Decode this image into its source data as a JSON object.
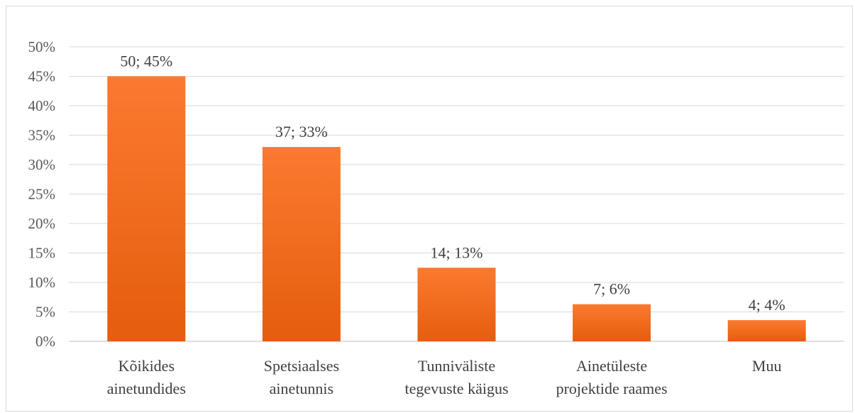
{
  "chart_data": {
    "type": "bar",
    "categories": [
      [
        "Kõikides",
        "ainetundides"
      ],
      [
        "Spetsiaalses",
        "ainetunnis"
      ],
      [
        "Tunniväliste",
        "tegevuste käigus"
      ],
      [
        "Ainetüleste",
        "projektide raames"
      ],
      [
        "Muu"
      ]
    ],
    "counts": [
      50,
      37,
      14,
      7,
      4
    ],
    "values": [
      45,
      33,
      12.5,
      6.3,
      3.6
    ],
    "data_labels": [
      "50; 45%",
      "37; 33%",
      "14; 13%",
      "7; 6%",
      "4; 4%"
    ],
    "yticks": [
      "0%",
      "5%",
      "10%",
      "15%",
      "20%",
      "25%",
      "30%",
      "35%",
      "40%",
      "45%",
      "50%"
    ],
    "ylim": [
      0,
      50
    ],
    "grid": true,
    "bar_color": "#f26a1b",
    "title": "",
    "xlabel": "",
    "ylabel": ""
  }
}
